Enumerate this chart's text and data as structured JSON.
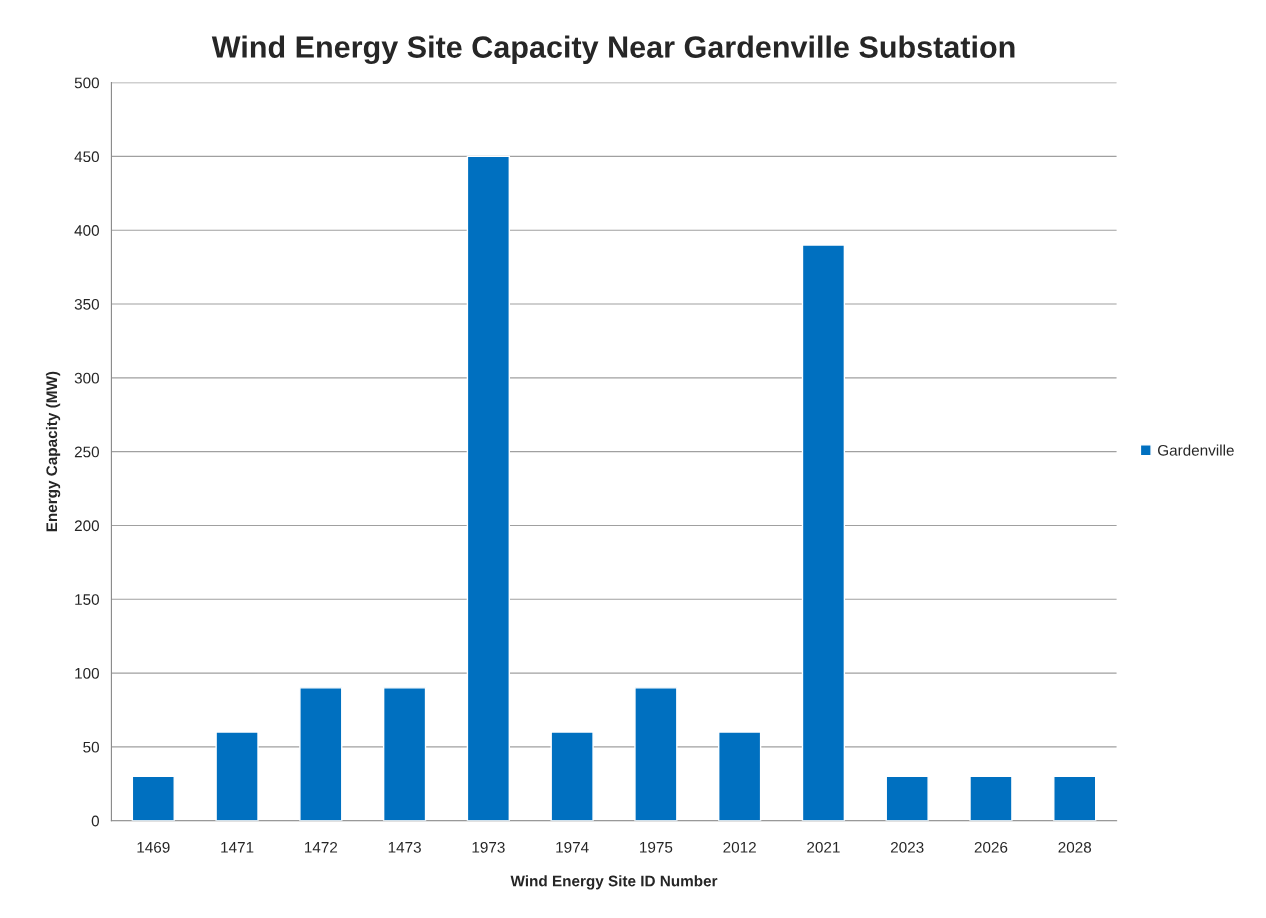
{
  "chart_data": {
    "type": "bar",
    "title": "Wind Energy Site Capacity Near Gardenville Substation",
    "xlabel": "Wind Energy Site ID Number",
    "ylabel": "Energy Capacity (MW)",
    "categories": [
      "1469",
      "1471",
      "1472",
      "1473",
      "1973",
      "1974",
      "1975",
      "2012",
      "2021",
      "2023",
      "2026",
      "2028"
    ],
    "series": [
      {
        "name": "Gardenville",
        "color": "#0070c0",
        "values": [
          30,
          60,
          90,
          90,
          450,
          60,
          90,
          60,
          390,
          30,
          30,
          30
        ]
      }
    ],
    "ylim": [
      0,
      500
    ],
    "yticks": [
      0,
      50,
      100,
      150,
      200,
      250,
      300,
      350,
      400,
      450,
      500
    ],
    "grid": "y",
    "legend": "right"
  }
}
